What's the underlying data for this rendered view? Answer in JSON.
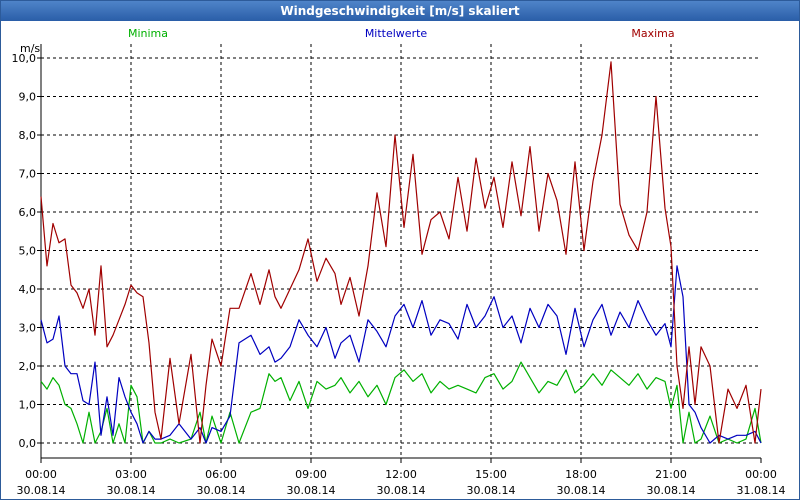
{
  "window": {
    "title": "Windgeschwindigkeit [m/s] skaliert"
  },
  "chart_data": {
    "type": "line",
    "title": "Windgeschwindigkeit [m/s] skaliert",
    "ylabel": "m/s",
    "ylim": [
      0,
      10
    ],
    "yticks": [
      "0,0",
      "1,0",
      "2,0",
      "3,0",
      "4,0",
      "5,0",
      "6,0",
      "7,0",
      "8,0",
      "9,0",
      "10,0"
    ],
    "xlim": [
      0,
      24
    ],
    "xticks": [
      {
        "time": "00:00",
        "date": "30.08.14"
      },
      {
        "time": "03:00",
        "date": "30.08.14"
      },
      {
        "time": "06:00",
        "date": "30.08.14"
      },
      {
        "time": "09:00",
        "date": "30.08.14"
      },
      {
        "time": "12:00",
        "date": "30.08.14"
      },
      {
        "time": "15:00",
        "date": "30.08.14"
      },
      {
        "time": "18:00",
        "date": "30.08.14"
      },
      {
        "time": "21:00",
        "date": "30.08.14"
      },
      {
        "time": "00:00",
        "date": "31.08.14"
      }
    ],
    "legend": [
      {
        "name": "Minima",
        "color": "#00b000"
      },
      {
        "name": "Mittelwerte",
        "color": "#0000c0"
      },
      {
        "name": "Maxima",
        "color": "#a00000"
      }
    ],
    "series": [
      {
        "name": "Minima",
        "color": "#00b000",
        "x": [
          0,
          0.2,
          0.4,
          0.6,
          0.8,
          1.0,
          1.2,
          1.4,
          1.6,
          1.8,
          2.0,
          2.2,
          2.4,
          2.6,
          2.8,
          3.0,
          3.2,
          3.4,
          3.6,
          3.8,
          4.0,
          4.3,
          4.6,
          5.0,
          5.3,
          5.5,
          5.7,
          6.0,
          6.3,
          6.6,
          7.0,
          7.3,
          7.6,
          7.8,
          8.0,
          8.3,
          8.6,
          8.9,
          9.2,
          9.5,
          9.8,
          10.0,
          10.3,
          10.6,
          10.9,
          11.2,
          11.5,
          11.8,
          12.1,
          12.4,
          12.7,
          13.0,
          13.3,
          13.6,
          13.9,
          14.2,
          14.5,
          14.8,
          15.1,
          15.4,
          15.7,
          16.0,
          16.3,
          16.6,
          16.9,
          17.2,
          17.5,
          17.8,
          18.1,
          18.4,
          18.7,
          19.0,
          19.3,
          19.6,
          19.9,
          20.2,
          20.5,
          20.8,
          21.0,
          21.2,
          21.4,
          21.6,
          21.8,
          22.0,
          22.3,
          22.6,
          22.9,
          23.2,
          23.5,
          23.8,
          24.0
        ],
        "values": [
          1.6,
          1.4,
          1.7,
          1.5,
          1.0,
          0.9,
          0.5,
          0.0,
          0.8,
          0.0,
          0.3,
          0.9,
          0.0,
          0.5,
          0.0,
          1.5,
          1.2,
          0.0,
          0.3,
          0.0,
          0.0,
          0.1,
          0.0,
          0.1,
          0.8,
          0.0,
          0.7,
          0.0,
          0.8,
          0.0,
          0.8,
          0.9,
          1.8,
          1.6,
          1.7,
          1.1,
          1.6,
          0.9,
          1.6,
          1.4,
          1.5,
          1.7,
          1.3,
          1.6,
          1.2,
          1.5,
          1.0,
          1.7,
          1.9,
          1.6,
          1.8,
          1.3,
          1.6,
          1.4,
          1.5,
          1.4,
          1.3,
          1.7,
          1.8,
          1.4,
          1.6,
          2.1,
          1.7,
          1.3,
          1.6,
          1.5,
          1.9,
          1.3,
          1.5,
          1.8,
          1.5,
          1.9,
          1.7,
          1.5,
          1.8,
          1.4,
          1.7,
          1.6,
          0.9,
          1.5,
          0.0,
          0.8,
          0.0,
          0.1,
          0.7,
          0.0,
          0.1,
          0.0,
          0.1,
          0.9,
          0.0
        ]
      },
      {
        "name": "Mittelwerte",
        "color": "#0000c0",
        "x": [
          0,
          0.2,
          0.4,
          0.6,
          0.8,
          1.0,
          1.2,
          1.4,
          1.6,
          1.8,
          2.0,
          2.2,
          2.4,
          2.6,
          2.8,
          3.0,
          3.2,
          3.4,
          3.6,
          3.8,
          4.0,
          4.3,
          4.6,
          5.0,
          5.3,
          5.5,
          5.7,
          6.0,
          6.3,
          6.6,
          7.0,
          7.3,
          7.6,
          7.8,
          8.0,
          8.3,
          8.6,
          8.9,
          9.2,
          9.5,
          9.8,
          10.0,
          10.3,
          10.6,
          10.9,
          11.2,
          11.5,
          11.8,
          12.1,
          12.4,
          12.7,
          13.0,
          13.3,
          13.6,
          13.9,
          14.2,
          14.5,
          14.8,
          15.1,
          15.4,
          15.7,
          16.0,
          16.3,
          16.6,
          16.9,
          17.2,
          17.5,
          17.8,
          18.1,
          18.4,
          18.7,
          19.0,
          19.3,
          19.6,
          19.9,
          20.2,
          20.5,
          20.8,
          21.0,
          21.2,
          21.4,
          21.6,
          21.8,
          22.0,
          22.3,
          22.6,
          22.9,
          23.2,
          23.5,
          23.8,
          24.0
        ],
        "values": [
          3.2,
          2.6,
          2.7,
          3.3,
          2.0,
          1.8,
          1.8,
          1.1,
          1.0,
          2.1,
          0.2,
          1.2,
          0.2,
          1.7,
          1.2,
          0.8,
          0.5,
          0.0,
          0.3,
          0.1,
          0.1,
          0.2,
          0.5,
          0.1,
          0.4,
          0.0,
          0.4,
          0.3,
          0.7,
          2.6,
          2.8,
          2.3,
          2.5,
          2.1,
          2.2,
          2.5,
          3.2,
          2.8,
          2.5,
          3.0,
          2.2,
          2.6,
          2.8,
          2.1,
          3.2,
          2.9,
          2.5,
          3.3,
          3.6,
          3.0,
          3.7,
          2.8,
          3.2,
          3.1,
          2.7,
          3.6,
          3.0,
          3.3,
          3.8,
          3.0,
          3.3,
          2.6,
          3.5,
          3.0,
          3.6,
          3.3,
          2.3,
          3.5,
          2.5,
          3.2,
          3.6,
          2.8,
          3.4,
          3.0,
          3.7,
          3.2,
          2.8,
          3.1,
          2.5,
          4.6,
          3.8,
          1.0,
          0.8,
          0.4,
          0.0,
          0.2,
          0.1,
          0.2,
          0.2,
          0.3,
          0.0
        ]
      },
      {
        "name": "Maxima",
        "color": "#a00000",
        "x": [
          0,
          0.2,
          0.4,
          0.6,
          0.8,
          1.0,
          1.2,
          1.4,
          1.6,
          1.8,
          2.0,
          2.2,
          2.4,
          2.6,
          2.8,
          3.0,
          3.2,
          3.4,
          3.6,
          3.8,
          4.0,
          4.3,
          4.6,
          5.0,
          5.3,
          5.5,
          5.7,
          6.0,
          6.3,
          6.6,
          7.0,
          7.3,
          7.6,
          7.8,
          8.0,
          8.3,
          8.6,
          8.9,
          9.2,
          9.5,
          9.8,
          10.0,
          10.3,
          10.6,
          10.9,
          11.2,
          11.5,
          11.8,
          12.1,
          12.4,
          12.7,
          13.0,
          13.3,
          13.6,
          13.9,
          14.2,
          14.5,
          14.8,
          15.1,
          15.4,
          15.7,
          16.0,
          16.3,
          16.6,
          16.9,
          17.2,
          17.5,
          17.8,
          18.1,
          18.4,
          18.7,
          19.0,
          19.3,
          19.6,
          19.9,
          20.2,
          20.5,
          20.8,
          21.0,
          21.2,
          21.4,
          21.6,
          21.8,
          22.0,
          22.3,
          22.6,
          22.9,
          23.2,
          23.5,
          23.8,
          24.0
        ],
        "values": [
          6.4,
          4.6,
          5.7,
          5.2,
          5.3,
          4.1,
          3.9,
          3.5,
          4.0,
          2.8,
          4.6,
          2.5,
          2.8,
          3.2,
          3.6,
          4.1,
          3.9,
          3.8,
          2.6,
          0.8,
          0.1,
          2.2,
          0.5,
          2.3,
          0.0,
          1.5,
          2.7,
          2.0,
          3.5,
          3.5,
          4.4,
          3.6,
          4.5,
          3.8,
          3.5,
          4.0,
          4.5,
          5.3,
          4.2,
          4.8,
          4.4,
          3.6,
          4.3,
          3.3,
          4.6,
          6.5,
          5.1,
          8.0,
          5.6,
          7.5,
          4.9,
          5.8,
          6.0,
          5.3,
          6.9,
          5.5,
          7.4,
          6.1,
          6.9,
          5.6,
          7.3,
          5.9,
          7.7,
          5.5,
          7.0,
          6.3,
          4.9,
          7.3,
          5.0,
          6.8,
          8.0,
          9.9,
          6.2,
          5.4,
          5.0,
          6.0,
          9.0,
          6.1,
          5.1,
          2.0,
          0.9,
          2.5,
          1.0,
          2.5,
          2.0,
          0.0,
          1.4,
          0.9,
          1.5,
          0.0,
          1.4
        ]
      }
    ]
  }
}
